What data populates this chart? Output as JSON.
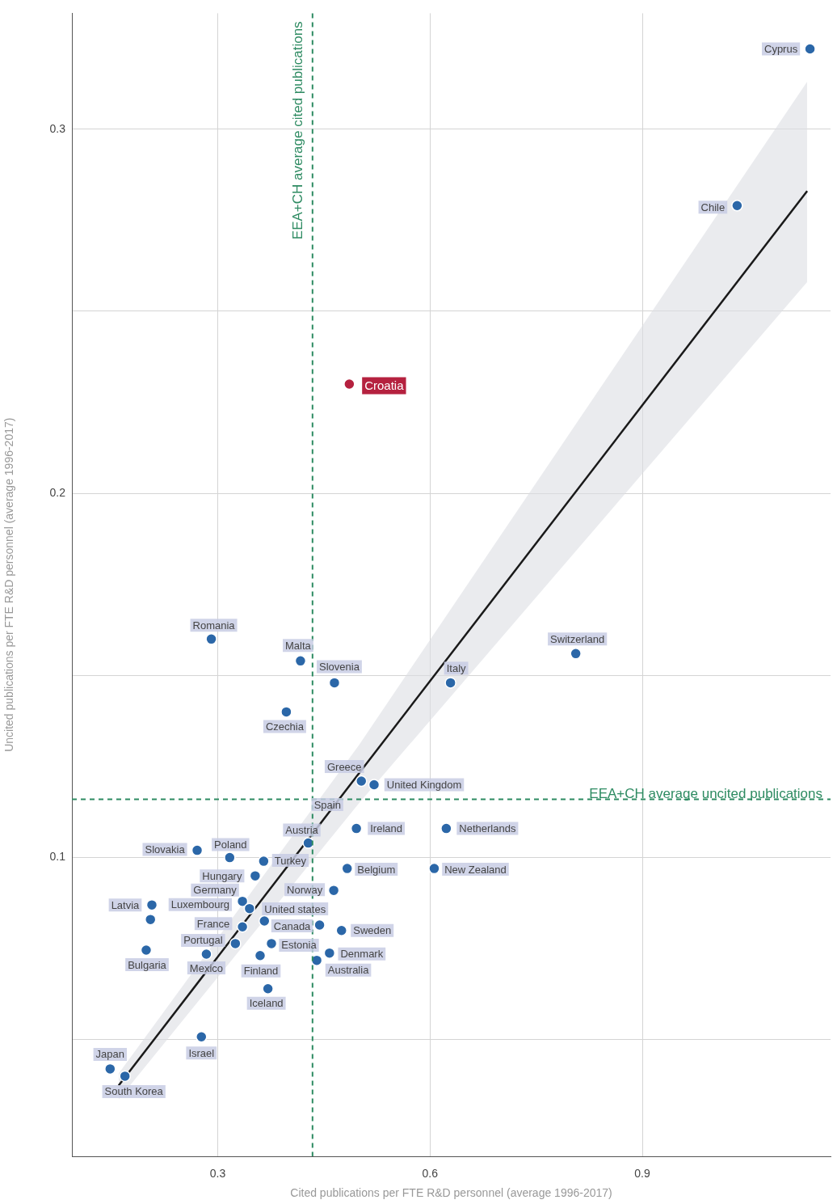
{
  "chart_data": {
    "type": "scatter",
    "xlabel": "Cited publications per FTE R&D personnel (average 1996-2017)",
    "ylabel": "Uncited publications per FTE R&D personnel (average 1996-2017)",
    "xlim": [
      0.094,
      1.166
    ],
    "ylim": [
      0.018,
      0.3318
    ],
    "xticks": [
      0.3,
      0.6,
      0.9
    ],
    "yticks": [
      {
        "value": 0.05,
        "label": null
      },
      0.1,
      {
        "value": 0.15,
        "label": null
      },
      0.2,
      {
        "value": 0.25,
        "label": null
      },
      0.3
    ],
    "grid": true,
    "legend": false,
    "marker": "circle",
    "series": [
      {
        "type": "scatter",
        "color": "#2b67a8",
        "x": [
          1.137,
          1.034,
          0.486,
          0.291,
          0.417,
          0.465,
          0.629,
          0.806,
          0.397,
          0.503,
          0.521,
          0.496,
          0.623,
          0.428,
          0.271,
          0.317,
          0.365,
          0.483,
          0.606,
          0.353,
          0.464,
          0.335,
          0.207,
          0.345,
          0.366,
          0.335,
          0.444,
          0.475,
          0.325,
          0.376,
          0.199,
          0.284,
          0.458,
          0.36,
          0.44,
          0.371,
          0.277,
          0.148,
          0.169,
          0.205
        ],
        "values": [
          0.322,
          0.279,
          0.23,
          0.16,
          0.154,
          0.148,
          0.148,
          0.156,
          0.14,
          0.121,
          0.12,
          0.108,
          0.108,
          0.104,
          0.102,
          0.1,
          0.099,
          0.097,
          0.097,
          0.095,
          0.091,
          0.088,
          0.087,
          0.086,
          0.0826,
          0.081,
          0.0815,
          0.08,
          0.0764,
          0.0764,
          0.0746,
          0.0735,
          0.0738,
          0.0731,
          0.0718,
          0.064,
          0.0508,
          0.042,
          0.04,
          0.083
        ],
        "colors": [
          "#2b67a8",
          "#2b67a8",
          "#b5213f",
          "#2b67a8",
          "#2b67a8",
          "#2b67a8",
          "#2b67a8",
          "#2b67a8",
          "#2b67a8",
          "#2b67a8",
          "#2b67a8",
          "#2b67a8",
          "#2b67a8",
          "#2b67a8",
          "#2b67a8",
          "#2b67a8",
          "#2b67a8",
          "#2b67a8",
          "#2b67a8",
          "#2b67a8",
          "#2b67a8",
          "#2b67a8",
          "#2b67a8",
          "#2b67a8",
          "#2b67a8",
          "#2b67a8",
          "#2b67a8",
          "#2b67a8",
          "#2b67a8",
          "#2b67a8",
          "#2b67a8",
          "#2b67a8",
          "#2b67a8",
          "#2b67a8",
          "#2b67a8",
          "#2b67a8",
          "#2b67a8",
          "#2b67a8",
          "#2b67a8",
          "#2b67a8"
        ]
      },
      {
        "type": "line",
        "marker": "none",
        "color": "#1a1a1a",
        "x": [
          0.16,
          0.5,
          1.133
        ],
        "values": [
          0.0374,
          0.1232,
          0.283
        ],
        "lower": [
          0.0336,
          0.115,
          0.258
        ],
        "upper": [
          0.0407,
          0.131,
          0.313
        ]
      }
    ],
    "ref_lines": [
      {
        "axis": "x",
        "value": 0.434,
        "label": "EEA+CH average cited publications",
        "color": "#2e8b62",
        "line_style": "dashed"
      },
      {
        "axis": "y",
        "value": 0.116,
        "label": "EEA+CH average uncited publications",
        "color": "#2e8b62",
        "line_style": "dashed"
      }
    ],
    "annotations": [
      {
        "text": "Cyprus",
        "x": 1.137,
        "y": 0.322
      },
      {
        "text": "Chile",
        "x": 1.034,
        "y": 0.279
      },
      {
        "text": "Croatia",
        "x": 0.486,
        "y": 0.23
      },
      {
        "text": "Romania",
        "x": 0.291,
        "y": 0.16
      },
      {
        "text": "Malta",
        "x": 0.417,
        "y": 0.154
      },
      {
        "text": "Slovenia",
        "x": 0.465,
        "y": 0.148
      },
      {
        "text": "Italy",
        "x": 0.629,
        "y": 0.148
      },
      {
        "text": "Switzerland",
        "x": 0.806,
        "y": 0.156
      },
      {
        "text": "Czechia",
        "x": 0.397,
        "y": 0.14
      },
      {
        "text": "Greece",
        "x": 0.503,
        "y": 0.121
      },
      {
        "text": "United Kingdom",
        "x": 0.521,
        "y": 0.12
      },
      {
        "text": "Spain",
        "x": 0.503,
        "y": 0.121
      },
      {
        "text": "Ireland",
        "x": 0.496,
        "y": 0.108
      },
      {
        "text": "Netherlands",
        "x": 0.623,
        "y": 0.108
      },
      {
        "text": "Austria",
        "x": 0.428,
        "y": 0.104
      },
      {
        "text": "Slovakia",
        "x": 0.271,
        "y": 0.102
      },
      {
        "text": "Poland",
        "x": 0.317,
        "y": 0.1
      },
      {
        "text": "Turkey",
        "x": 0.365,
        "y": 0.099
      },
      {
        "text": "Belgium",
        "x": 0.483,
        "y": 0.097
      },
      {
        "text": "New Zealand",
        "x": 0.606,
        "y": 0.097
      },
      {
        "text": "Hungary",
        "x": 0.353,
        "y": 0.095
      },
      {
        "text": "Norway",
        "x": 0.464,
        "y": 0.091
      },
      {
        "text": "Germany",
        "x": 0.335,
        "y": 0.088
      },
      {
        "text": "Latvia",
        "x": 0.207,
        "y": 0.087
      },
      {
        "text": "Luxembourg",
        "x": 0.345,
        "y": 0.086
      },
      {
        "text": "United states",
        "x": 0.366,
        "y": 0.0826
      },
      {
        "text": "France",
        "x": 0.335,
        "y": 0.081
      },
      {
        "text": "Canada",
        "x": 0.444,
        "y": 0.0815
      },
      {
        "text": "Sweden",
        "x": 0.475,
        "y": 0.08
      },
      {
        "text": "Portugal",
        "x": 0.325,
        "y": 0.0764
      },
      {
        "text": "Estonia",
        "x": 0.376,
        "y": 0.0764
      },
      {
        "text": "Bulgaria",
        "x": 0.199,
        "y": 0.0746
      },
      {
        "text": "Mexico",
        "x": 0.284,
        "y": 0.0735
      },
      {
        "text": "Denmark",
        "x": 0.458,
        "y": 0.0738
      },
      {
        "text": "Finland",
        "x": 0.36,
        "y": 0.0731
      },
      {
        "text": "Australia",
        "x": 0.44,
        "y": 0.0718
      },
      {
        "text": "Iceland",
        "x": 0.371,
        "y": 0.064
      },
      {
        "text": "Israel",
        "x": 0.277,
        "y": 0.0508
      },
      {
        "text": "Japan",
        "x": 0.148,
        "y": 0.042
      },
      {
        "text": "South Korea",
        "x": 0.169,
        "y": 0.04
      }
    ]
  }
}
